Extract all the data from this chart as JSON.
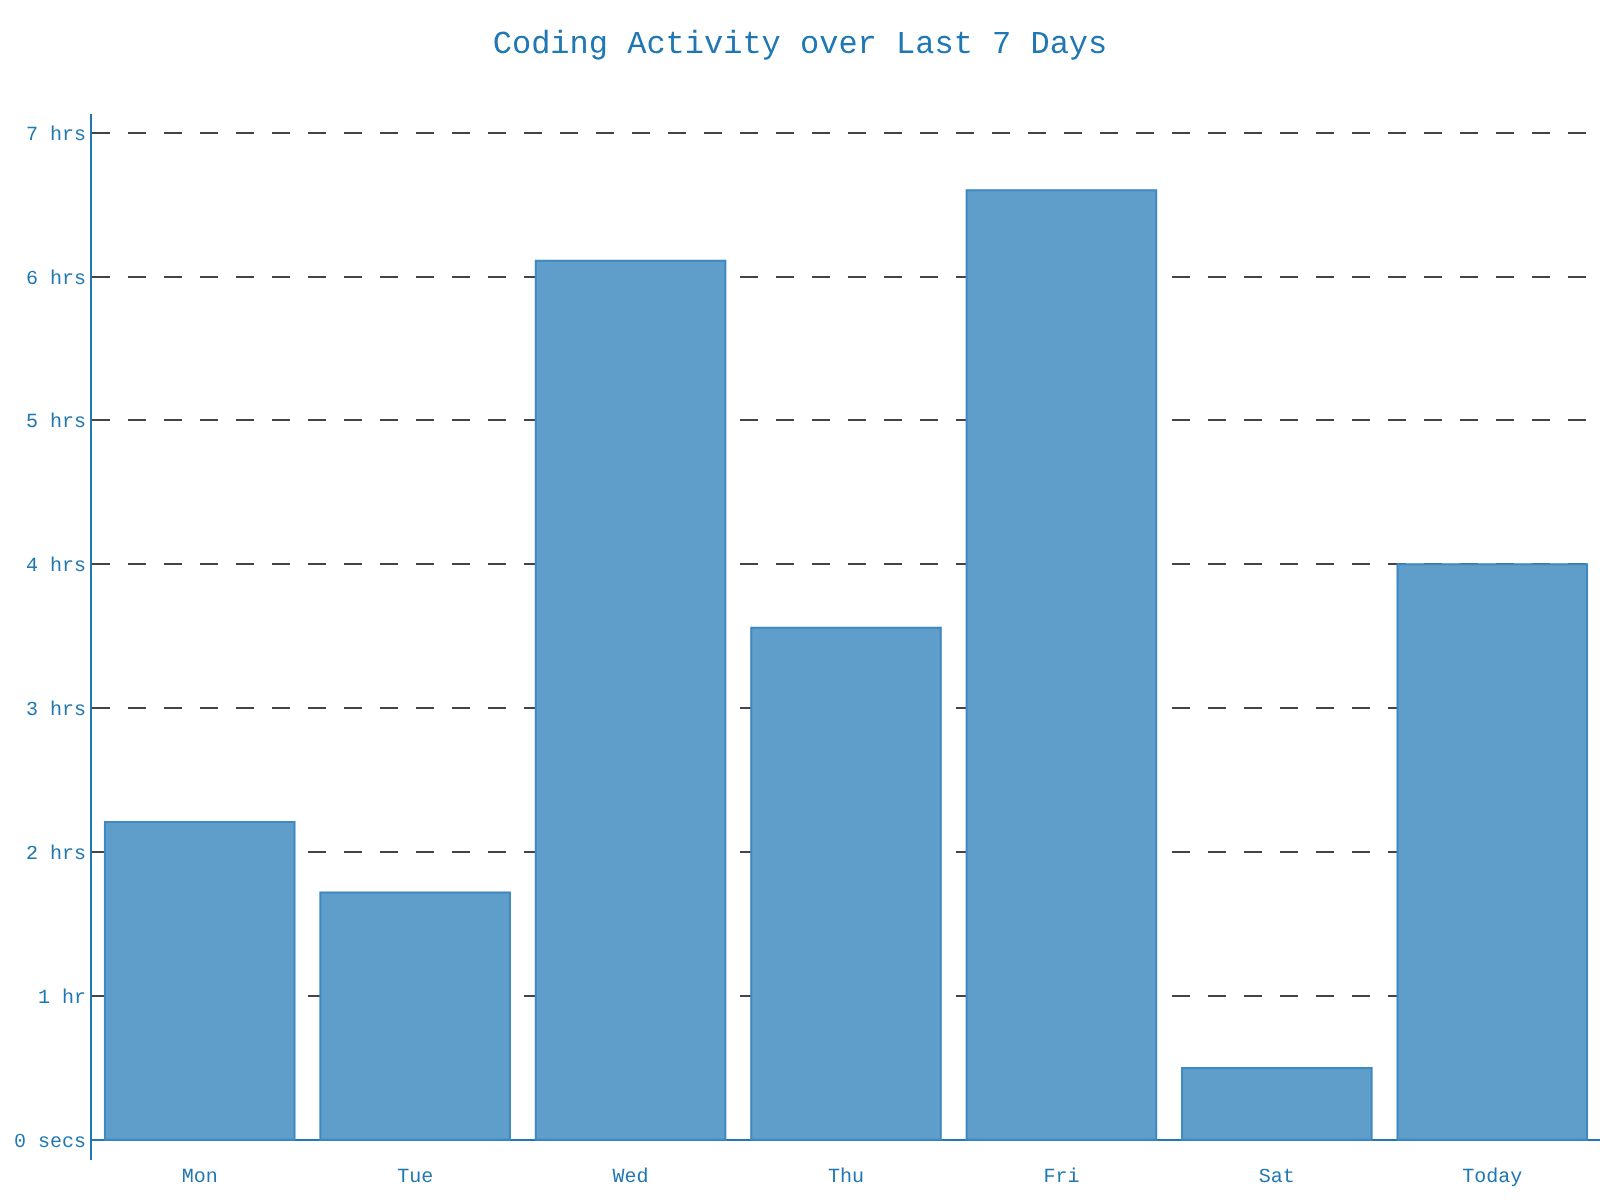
{
  "chart_data": {
    "type": "bar",
    "title": "Coding Activity over Last 7 Days",
    "categories": [
      "Mon",
      "Tue",
      "Wed",
      "Thu",
      "Fri",
      "Sat",
      "Today"
    ],
    "series": [
      {
        "color": "#5f9ecb",
        "values": [
          2.21,
          1.72,
          6.11,
          3.56,
          6.6,
          0.5,
          4.0
        ]
      }
    ],
    "ylim": [
      -0.14,
      7.13
    ],
    "yticks": [
      {
        "value": 0,
        "label": "0 secs"
      },
      {
        "value": 1,
        "label": "1 hr"
      },
      {
        "value": 2,
        "label": "2 hrs"
      },
      {
        "value": 3,
        "label": "3 hrs"
      },
      {
        "value": 4,
        "label": "4 hrs"
      },
      {
        "value": 5,
        "label": "5 hrs"
      },
      {
        "value": 6,
        "label": "6 hrs"
      },
      {
        "value": 7,
        "label": "7 hrs"
      }
    ],
    "grid": "y",
    "legend": false
  }
}
